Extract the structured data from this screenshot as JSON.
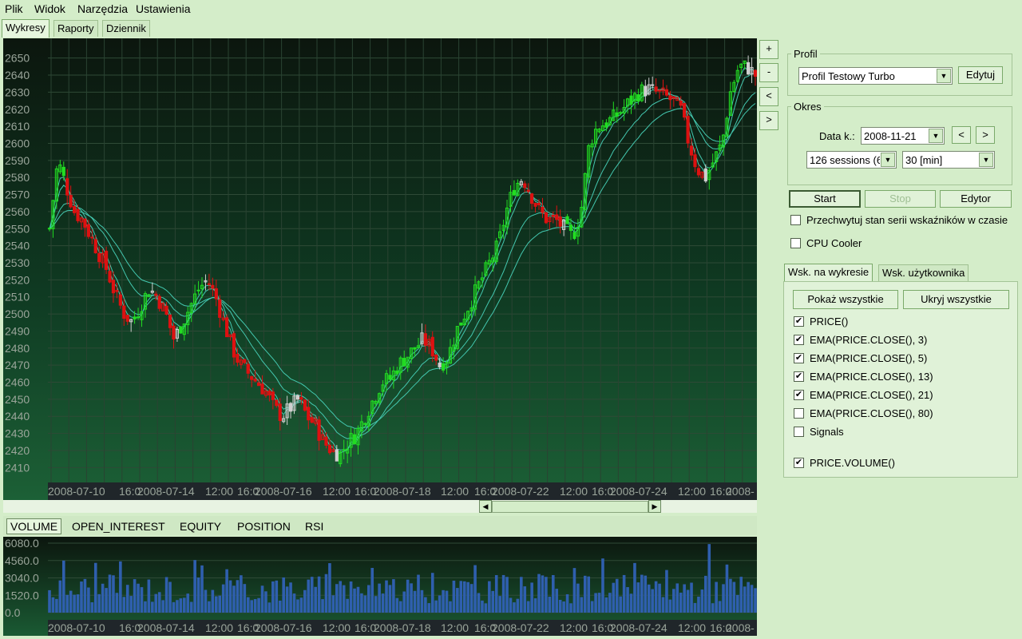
{
  "menu": [
    "Plik",
    "Widok",
    "Narzędzia",
    "Ustawienia"
  ],
  "main_tabs": [
    "Wykresy",
    "Raporty",
    "Dziennik"
  ],
  "zoom_buttons": [
    "+",
    "-",
    "<",
    ">"
  ],
  "colors": {
    "bg": "#d4edc9",
    "chart_top": "#0d1a10",
    "chart_mid": "#12442a",
    "bull": "#22dd22",
    "bear": "#dd1111",
    "neutral": "#cfcfcf",
    "ema": "#44c8b0",
    "volume_bar": "#2f5fae",
    "axis_text": "#9aa59a"
  },
  "price_axis": {
    "ticks": [
      "2650",
      "2640",
      "2630",
      "2620",
      "2610",
      "2600",
      "2590",
      "2580",
      "2570",
      "2560",
      "2550",
      "2540",
      "2530",
      "2520",
      "2510",
      "2500",
      "2490",
      "2480",
      "2470",
      "2460",
      "2450",
      "2440",
      "2430",
      "2420",
      "2410"
    ],
    "min": 2405,
    "max": 2655
  },
  "time_axis": [
    "2008-07-10",
    "16:0",
    "2008-07-14",
    "12:00",
    "16:0",
    "2008-07-16",
    "12:00",
    "16:0",
    "2008-07-18",
    "12:00",
    "16:0",
    "2008-07-22",
    "12:00",
    "16:0",
    "2008-07-24",
    "12:00",
    "16:0",
    "2008-"
  ],
  "volume_axis": [
    "6080.0",
    "4560.0",
    "3040.0",
    "1520.0",
    "0.0"
  ],
  "subtabs": [
    "VOLUME",
    "OPEN_INTEREST",
    "EQUITY",
    "POSITION",
    "RSI"
  ],
  "profile": {
    "legend": "Profil",
    "selected": "Profil Testowy Turbo",
    "edit_label": "Edytuj"
  },
  "period": {
    "legend": "Okres",
    "date_label": "Data k.:",
    "date_value": "2008-11-21",
    "prev": "<",
    "next": ">",
    "sessions": "126 sessions (6",
    "interval": "30 [min]"
  },
  "actions": {
    "start": "Start",
    "stop": "Stop",
    "editor": "Edytor"
  },
  "options": {
    "intercept": "Przechwytuj stan serii wskaźników w czasie",
    "cpu_cooler": "CPU Cooler"
  },
  "indicator_tabs": [
    "Wsk. na wykresie",
    "Wsk. użytkownika"
  ],
  "indicator_buttons": {
    "show_all": "Pokaż wszystkie",
    "hide_all": "Ukryj wszystkie"
  },
  "indicators": [
    {
      "label": "PRICE()",
      "checked": true
    },
    {
      "label": "EMA(PRICE.CLOSE(), 3)",
      "checked": true
    },
    {
      "label": "EMA(PRICE.CLOSE(), 5)",
      "checked": true
    },
    {
      "label": "EMA(PRICE.CLOSE(), 13)",
      "checked": true
    },
    {
      "label": "EMA(PRICE.CLOSE(), 21)",
      "checked": true
    },
    {
      "label": "EMA(PRICE.CLOSE(), 80)",
      "checked": false
    },
    {
      "label": "Signals",
      "checked": false
    },
    {
      "label": "PRICE.VOLUME()",
      "checked": true
    }
  ],
  "chart_data": {
    "type": "candlestick",
    "title": "",
    "x_dates": [
      "2008-07-10",
      "2008-07-14",
      "2008-07-16",
      "2008-07-18",
      "2008-07-22",
      "2008-07-24"
    ],
    "ylim": [
      2405,
      2655
    ],
    "close_path": [
      2550,
      2590,
      2575,
      2560,
      2555,
      2545,
      2535,
      2525,
      2510,
      2500,
      2495,
      2505,
      2515,
      2510,
      2500,
      2485,
      2495,
      2505,
      2515,
      2520,
      2510,
      2495,
      2480,
      2470,
      2465,
      2460,
      2455,
      2445,
      2440,
      2445,
      2450,
      2440,
      2435,
      2425,
      2420,
      2418,
      2425,
      2430,
      2440,
      2450,
      2460,
      2462,
      2470,
      2475,
      2480,
      2485,
      2480,
      2470,
      2475,
      2490,
      2500,
      2510,
      2520,
      2530,
      2540,
      2560,
      2575,
      2580,
      2570,
      2560,
      2555,
      2555,
      2550,
      2545,
      2560,
      2600,
      2610,
      2612,
      2615,
      2620,
      2625,
      2630,
      2632,
      2630,
      2628,
      2625,
      2620,
      2600,
      2585,
      2580,
      2590,
      2600,
      2630,
      2645,
      2645,
      2640
    ],
    "volume_ylim": [
      0,
      6080
    ],
    "volume_ticks": [
      0,
      1520,
      3040,
      4560,
      6080
    ]
  }
}
